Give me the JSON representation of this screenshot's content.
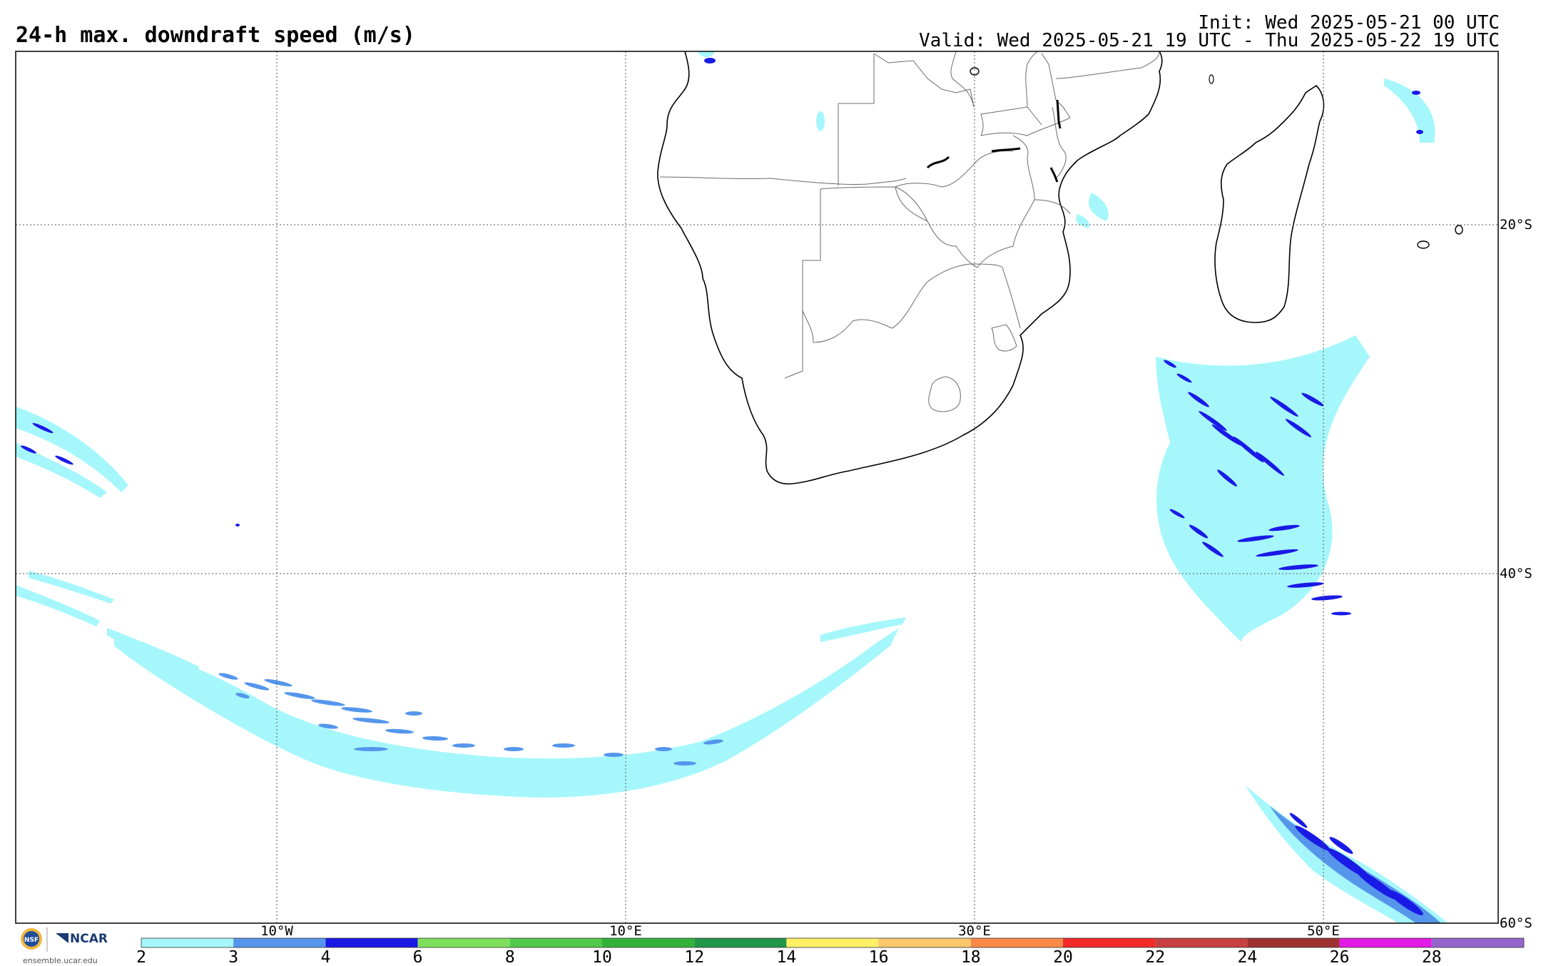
{
  "title": "24-h max. downdraft speed (m/s)",
  "init_line": "Init: Wed 2025-05-21 00 UTC",
  "valid_line": "Valid: Wed 2025-05-21 19 UTC - Thu 2025-05-22 19 UTC",
  "map": {
    "lon_labels": [
      "10°W",
      "10°E",
      "30°E",
      "50°E"
    ],
    "lat_labels": [
      "20°S",
      "40°S",
      "60°S"
    ],
    "grid_lines": "dotted"
  },
  "colorbar": {
    "ticks": [
      "2",
      "3",
      "4",
      "6",
      "8",
      "10",
      "12",
      "14",
      "16",
      "18",
      "20",
      "22",
      "24",
      "26",
      "28"
    ],
    "colors": [
      "#a6f7fb",
      "#5596eb",
      "#1a1ae6",
      "#7ddf5c",
      "#52c94a",
      "#32b23a",
      "#229648",
      "#fff066",
      "#fcc76a",
      "#fb8a4a",
      "#f42a2a",
      "#c84040",
      "#9e3232",
      "#e31ae6",
      "#9466cc"
    ]
  },
  "logo": {
    "org1": "NSF",
    "org2": "NCAR",
    "url": "ensemble.ucar.edu"
  }
}
